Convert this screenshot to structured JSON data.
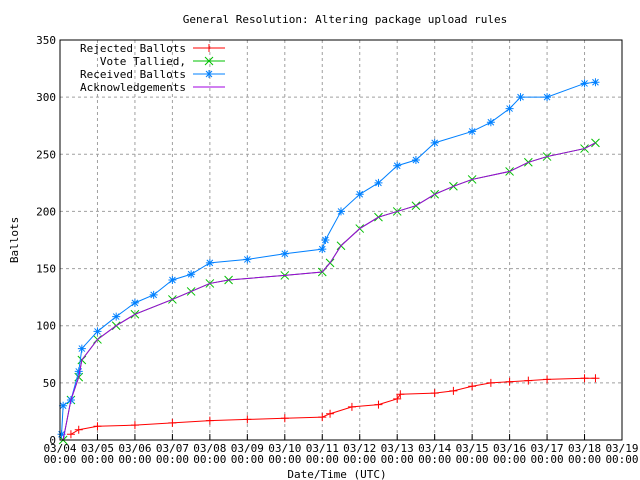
{
  "chart_data": {
    "type": "line",
    "title": "General Resolution: Altering package upload rules",
    "xlabel": "Date/Time (UTC)",
    "ylabel": "Ballots",
    "xlim": [
      "03/04 00:00",
      "03/19 00:00"
    ],
    "ylim": [
      0,
      350
    ],
    "grid": true,
    "legend": "top-left",
    "x_ticks": [
      "03/04\n00:00",
      "03/05\n00:00",
      "03/06\n00:00",
      "03/07\n00:00",
      "03/08\n00:00",
      "03/09\n00:00",
      "03/10\n00:00",
      "03/11\n00:00",
      "03/12\n00:00",
      "03/13\n00:00",
      "03/14\n00:00",
      "03/15\n00:00",
      "03/16\n00:00",
      "03/17\n00:00",
      "03/18\n00:00",
      "03/19\n00:00"
    ],
    "y_ticks": [
      0,
      50,
      100,
      150,
      200,
      250,
      300,
      350
    ],
    "series": [
      {
        "name": "Rejected Ballots",
        "color": "#ff0000",
        "marker": "plus",
        "x": [
          "03/04 07:00",
          "03/04 12:00",
          "03/05 00:00",
          "03/06 00:00",
          "03/07 00:00",
          "03/08 00:00",
          "03/09 00:00",
          "03/10 00:00",
          "03/11 00:00",
          "03/11 05:00",
          "03/11 19:00",
          "03/12 12:00",
          "03/13 00:00",
          "03/13 02:00",
          "03/14 00:00",
          "03/14 12:00",
          "03/15 00:00",
          "03/15 12:00",
          "03/16 00:00",
          "03/16 12:00",
          "03/17 00:00",
          "03/18 00:00",
          "03/18 07:00"
        ],
        "y": [
          5,
          9,
          12,
          13,
          15,
          17,
          18,
          19,
          20,
          23,
          29,
          31,
          36,
          40,
          41,
          43,
          47,
          50,
          51,
          52,
          53,
          54,
          54
        ]
      },
      {
        "name": "Vote Tallied,",
        "color": "#00c000",
        "marker": "x",
        "x": [
          "03/04 02:00",
          "03/04 07:00",
          "03/04 12:00",
          "03/04 14:00",
          "03/05 00:00",
          "03/05 12:00",
          "03/06 00:00",
          "03/07 00:00",
          "03/07 12:00",
          "03/08 00:00",
          "03/08 12:00",
          "03/10 00:00",
          "03/11 00:00",
          "03/11 05:00",
          "03/11 12:00",
          "03/12 00:00",
          "03/12 12:00",
          "03/13 00:00",
          "03/13 12:00",
          "03/14 00:00",
          "03/14 12:00",
          "03/15 00:00",
          "03/16 00:00",
          "03/16 12:00",
          "03/17 00:00",
          "03/18 00:00",
          "03/18 07:00"
        ],
        "y": [
          0,
          35,
          55,
          70,
          88,
          100,
          110,
          123,
          130,
          137,
          140,
          144,
          147,
          155,
          170,
          185,
          195,
          200,
          205,
          215,
          222,
          228,
          235,
          243,
          248,
          255,
          260
        ]
      },
      {
        "name": "Received Ballots",
        "color": "#0080ff",
        "marker": "star",
        "x": [
          "03/04 01:00",
          "03/04 02:00",
          "03/04 07:00",
          "03/04 12:00",
          "03/04 14:00",
          "03/05 00:00",
          "03/05 12:00",
          "03/06 00:00",
          "03/06 12:00",
          "03/07 00:00",
          "03/07 12:00",
          "03/08 00:00",
          "03/09 00:00",
          "03/10 00:00",
          "03/11 00:00",
          "03/11 02:00",
          "03/11 12:00",
          "03/12 00:00",
          "03/12 12:00",
          "03/13 00:00",
          "03/13 12:00",
          "03/14 00:00",
          "03/15 00:00",
          "03/15 12:00",
          "03/16 00:00",
          "03/16 07:00",
          "03/17 00:00",
          "03/18 00:00",
          "03/18 07:00"
        ],
        "y": [
          5,
          30,
          35,
          60,
          80,
          95,
          108,
          120,
          127,
          140,
          145,
          155,
          158,
          163,
          167,
          175,
          200,
          215,
          225,
          240,
          245,
          260,
          270,
          278,
          290,
          300,
          300,
          312,
          313
        ]
      },
      {
        "name": "Acknowledgements",
        "color": "#a000e0",
        "marker": "none",
        "x": [
          "03/04 02:00",
          "03/04 07:00",
          "03/04 12:00",
          "03/04 14:00",
          "03/05 00:00",
          "03/05 12:00",
          "03/06 00:00",
          "03/07 00:00",
          "03/07 12:00",
          "03/08 00:00",
          "03/08 12:00",
          "03/10 00:00",
          "03/11 00:00",
          "03/11 05:00",
          "03/11 12:00",
          "03/12 00:00",
          "03/12 12:00",
          "03/13 00:00",
          "03/13 12:00",
          "03/14 00:00",
          "03/14 12:00",
          "03/15 00:00",
          "03/16 00:00",
          "03/16 12:00",
          "03/17 00:00",
          "03/18 00:00",
          "03/18 07:00"
        ],
        "y": [
          0,
          35,
          55,
          70,
          88,
          100,
          110,
          123,
          130,
          137,
          140,
          144,
          147,
          155,
          170,
          185,
          195,
          200,
          205,
          215,
          222,
          228,
          235,
          243,
          248,
          255,
          260
        ]
      }
    ]
  }
}
